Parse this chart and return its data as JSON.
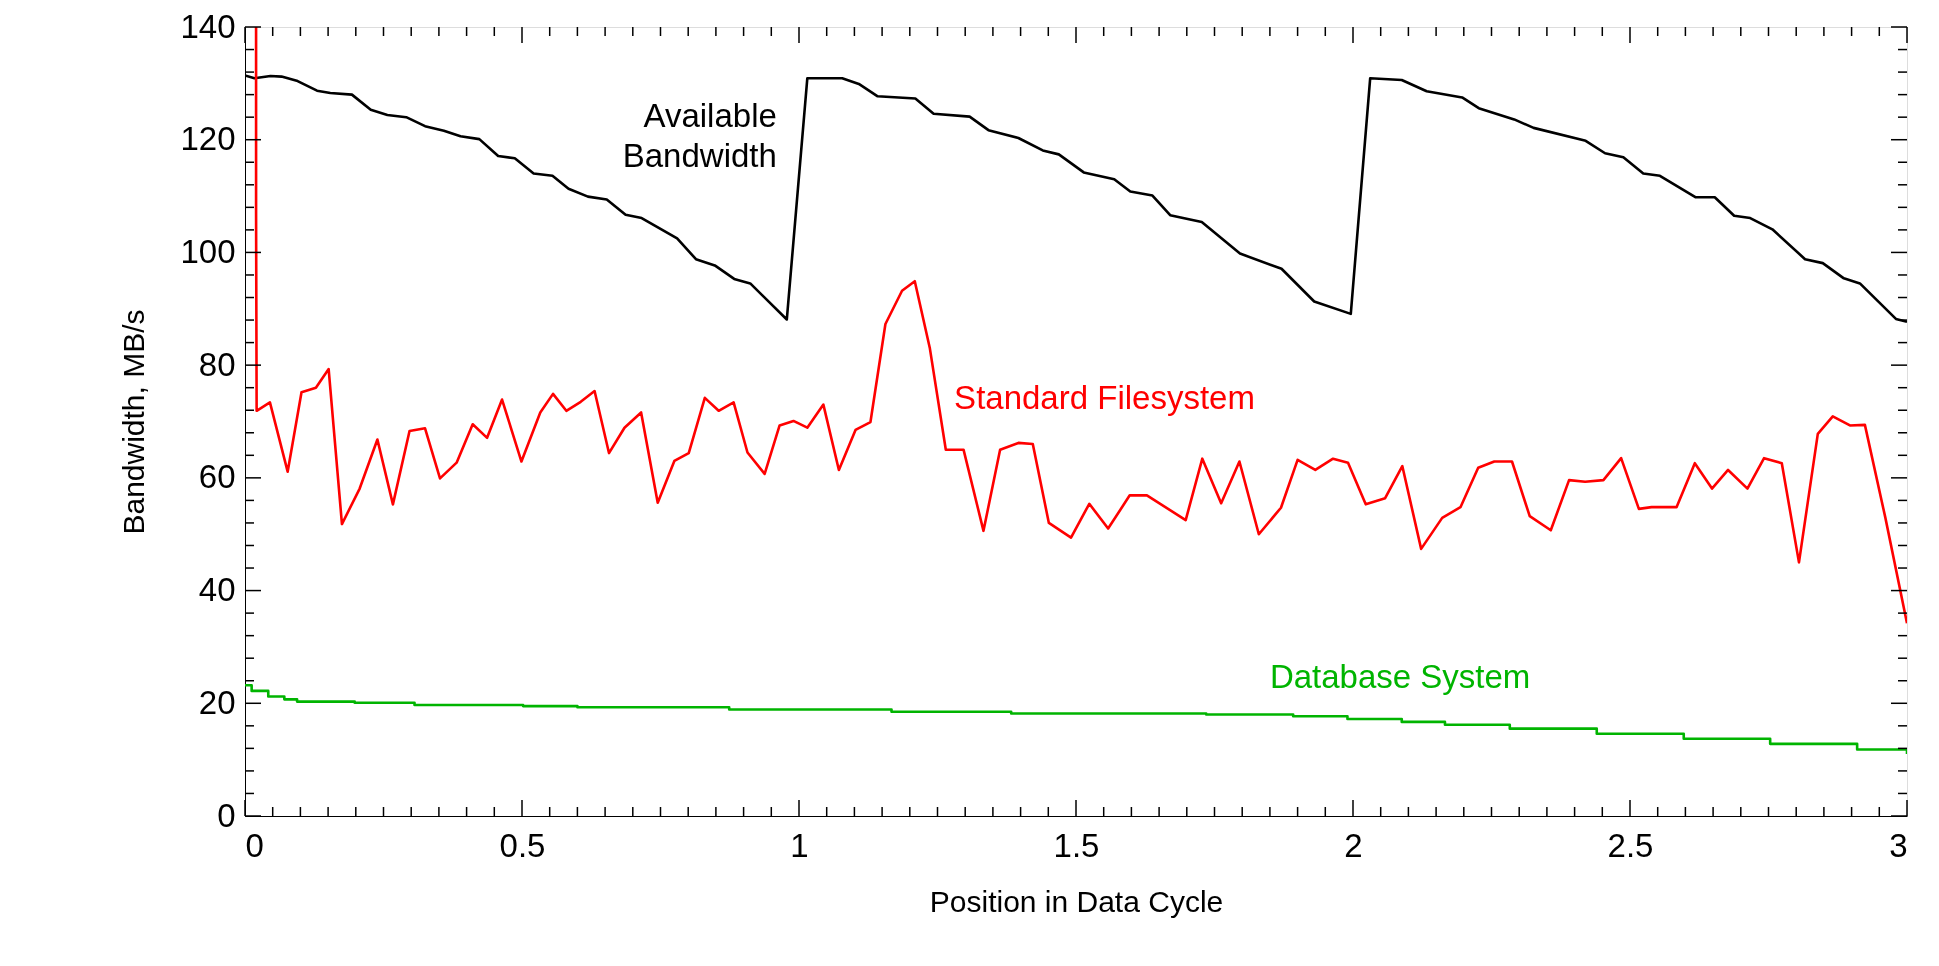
{
  "chart_data": {
    "type": "line",
    "xlabel": "Position in Data Cycle",
    "ylabel": "Bandwidth, MB/s",
    "xlim": [
      0,
      3
    ],
    "ylim": [
      0,
      140
    ],
    "xticks": [
      0,
      {
        "value": 0.05,
        "label": null
      },
      {
        "value": 0.1,
        "label": null
      },
      {
        "value": 0.15,
        "label": null
      },
      {
        "value": 0.2,
        "label": null
      },
      {
        "value": 0.25,
        "label": null
      },
      {
        "value": 0.3,
        "label": null
      },
      {
        "value": 0.35,
        "label": null
      },
      {
        "value": 0.4,
        "label": null
      },
      {
        "value": 0.45,
        "label": null
      },
      0.5,
      {
        "value": 0.55,
        "label": null
      },
      {
        "value": 0.6,
        "label": null
      },
      {
        "value": 0.65,
        "label": null
      },
      {
        "value": 0.7,
        "label": null
      },
      {
        "value": 0.75,
        "label": null
      },
      {
        "value": 0.8,
        "label": null
      },
      {
        "value": 0.85,
        "label": null
      },
      {
        "value": 0.9,
        "label": null
      },
      {
        "value": 0.95,
        "label": null
      },
      1,
      {
        "value": 1.05,
        "label": null
      },
      {
        "value": 1.1,
        "label": null
      },
      {
        "value": 1.15,
        "label": null
      },
      {
        "value": 1.2,
        "label": null
      },
      {
        "value": 1.25,
        "label": null
      },
      {
        "value": 1.3,
        "label": null
      },
      {
        "value": 1.35,
        "label": null
      },
      {
        "value": 1.4,
        "label": null
      },
      {
        "value": 1.45,
        "label": null
      },
      1.5,
      {
        "value": 1.55,
        "label": null
      },
      {
        "value": 1.6,
        "label": null
      },
      {
        "value": 1.65,
        "label": null
      },
      {
        "value": 1.7,
        "label": null
      },
      {
        "value": 1.75,
        "label": null
      },
      {
        "value": 1.8,
        "label": null
      },
      {
        "value": 1.85,
        "label": null
      },
      {
        "value": 1.9,
        "label": null
      },
      {
        "value": 1.95,
        "label": null
      },
      2,
      {
        "value": 2.05,
        "label": null
      },
      {
        "value": 2.1,
        "label": null
      },
      {
        "value": 2.15,
        "label": null
      },
      {
        "value": 2.2,
        "label": null
      },
      {
        "value": 2.25,
        "label": null
      },
      {
        "value": 2.3,
        "label": null
      },
      {
        "value": 2.35,
        "label": null
      },
      {
        "value": 2.4,
        "label": null
      },
      {
        "value": 2.45,
        "label": null
      },
      2.5,
      {
        "value": 2.55,
        "label": null
      },
      {
        "value": 2.6,
        "label": null
      },
      {
        "value": 2.65,
        "label": null
      },
      {
        "value": 2.7,
        "label": null
      },
      {
        "value": 2.75,
        "label": null
      },
      {
        "value": 2.8,
        "label": null
      },
      {
        "value": 2.85,
        "label": null
      },
      {
        "value": 2.9,
        "label": null
      },
      {
        "value": 2.95,
        "label": null
      },
      3
    ],
    "yticks": [
      0,
      {
        "value": 4,
        "label": null
      },
      {
        "value": 8,
        "label": null
      },
      {
        "value": 12,
        "label": null
      },
      {
        "value": 16,
        "label": null
      },
      20,
      {
        "value": 24,
        "label": null
      },
      {
        "value": 28,
        "label": null
      },
      {
        "value": 32,
        "label": null
      },
      {
        "value": 36,
        "label": null
      },
      40,
      {
        "value": 44,
        "label": null
      },
      {
        "value": 48,
        "label": null
      },
      {
        "value": 52,
        "label": null
      },
      {
        "value": 56,
        "label": null
      },
      60,
      {
        "value": 64,
        "label": null
      },
      {
        "value": 68,
        "label": null
      },
      {
        "value": 72,
        "label": null
      },
      {
        "value": 76,
        "label": null
      },
      80,
      {
        "value": 84,
        "label": null
      },
      {
        "value": 88,
        "label": null
      },
      {
        "value": 92,
        "label": null
      },
      {
        "value": 96,
        "label": null
      },
      100,
      {
        "value": 104,
        "label": null
      },
      {
        "value": 108,
        "label": null
      },
      {
        "value": 112,
        "label": null
      },
      {
        "value": 116,
        "label": null
      },
      120,
      {
        "value": 124,
        "label": null
      },
      {
        "value": 128,
        "label": null
      },
      {
        "value": 132,
        "label": null
      },
      {
        "value": 136,
        "label": null
      },
      140
    ],
    "grid": false,
    "marker": "none",
    "line_style": "solid",
    "series": [
      {
        "name": "Available\nBandwidth",
        "color": "#000000",
        "type": "line",
        "x": [
          0,
          0.017,
          0.046,
          0.066,
          0.095,
          0.13,
          0.154,
          0.193,
          0.227,
          0.257,
          0.291,
          0.325,
          0.359,
          0.389,
          0.423,
          0.457,
          0.487,
          0.521,
          0.555,
          0.584,
          0.619,
          0.653,
          0.687,
          0.716,
          0.78,
          0.814,
          0.848,
          0.883,
          0.912,
          0.978,
          1.015,
          1.078,
          1.108,
          1.142,
          1.21,
          1.243,
          1.308,
          1.342,
          1.396,
          1.44,
          1.469,
          1.514,
          1.569,
          1.598,
          1.638,
          1.67,
          1.727,
          1.796,
          1.871,
          1.93,
          1.996,
          2.031,
          2.088,
          2.133,
          2.197,
          2.227,
          2.291,
          2.326,
          2.42,
          2.455,
          2.488,
          2.524,
          2.554,
          2.618,
          2.653,
          2.688,
          2.717,
          2.757,
          2.816,
          2.848,
          2.886,
          2.915,
          2.98,
          3
        ],
        "values": [
          131.4,
          130.9,
          131.3,
          131.2,
          130.4,
          128.7,
          128.3,
          128.0,
          125.3,
          124.4,
          124.0,
          122.4,
          121.6,
          120.6,
          120.1,
          117.1,
          116.7,
          114.0,
          113.6,
          111.3,
          109.9,
          109.4,
          106.7,
          106.1,
          102.5,
          98.8,
          97.7,
          95.3,
          94.5,
          88.1,
          130.9,
          130.9,
          129.9,
          127.7,
          127.3,
          124.6,
          124.1,
          121.7,
          120.3,
          118.1,
          117.4,
          114.2,
          113.0,
          110.8,
          110.1,
          106.6,
          105.4,
          99.8,
          97.1,
          91.3,
          89.1,
          130.9,
          130.6,
          128.6,
          127.5,
          125.6,
          123.6,
          122.1,
          119.8,
          117.6,
          116.9,
          114.0,
          113.6,
          109.8,
          109.8,
          106.5,
          106.1,
          104.1,
          98.8,
          98.1,
          95.4,
          94.5,
          88.2,
          87.7
        ]
      },
      {
        "name": "Standard Filesystem",
        "color": "#ff0000",
        "type": "line",
        "x": [
          0.02,
          0.02,
          0.021,
          0.045,
          0.077,
          0.102,
          0.128,
          0.151,
          0.175,
          0.207,
          0.239,
          0.267,
          0.297,
          0.325,
          0.352,
          0.382,
          0.411,
          0.437,
          0.464,
          0.499,
          0.533,
          0.556,
          0.58,
          0.606,
          0.631,
          0.657,
          0.685,
          0.715,
          0.745,
          0.775,
          0.801,
          0.83,
          0.855,
          0.882,
          0.907,
          0.938,
          0.965,
          0.99,
          1.015,
          1.044,
          1.072,
          1.102,
          1.129,
          1.156,
          1.186,
          1.209,
          1.236,
          1.265,
          1.297,
          1.333,
          1.363,
          1.396,
          1.422,
          1.451,
          1.491,
          1.524,
          1.558,
          1.597,
          1.628,
          1.698,
          1.728,
          1.762,
          1.795,
          1.83,
          1.87,
          1.9,
          1.932,
          1.964,
          1.991,
          2.023,
          2.058,
          2.089,
          2.123,
          2.161,
          2.194,
          2.226,
          2.255,
          2.287,
          2.319,
          2.357,
          2.39,
          2.419,
          2.452,
          2.484,
          2.516,
          2.539,
          2.584,
          2.617,
          2.648,
          2.677,
          2.712,
          2.742,
          2.774,
          2.805,
          2.839,
          2.866,
          2.897,
          2.924,
          2.961,
          3
        ],
        "values": [
          140,
          107,
          71.9,
          73.4,
          61.1,
          75.2,
          76.0,
          79.3,
          51.8,
          58.1,
          66.8,
          55.3,
          68.3,
          68.8,
          59.9,
          62.7,
          69.5,
          67.1,
          73.9,
          62.9,
          71.6,
          74.9,
          71.9,
          73.5,
          75.4,
          64.4,
          68.9,
          71.6,
          55.6,
          63.0,
          64.4,
          74.2,
          71.9,
          73.4,
          64.5,
          60.7,
          69.3,
          70.1,
          68.9,
          73.0,
          61.4,
          68.5,
          69.9,
          87.3,
          93.2,
          94.9,
          83.1,
          65.0,
          65.0,
          50.6,
          65.0,
          66.2,
          66.0,
          52.0,
          49.4,
          55.4,
          51.0,
          56.9,
          56.9,
          52.5,
          63.4,
          55.5,
          62.9,
          50.0,
          54.7,
          63.2,
          61.4,
          63.4,
          62.7,
          55.3,
          56.4,
          62.1,
          47.4,
          52.9,
          54.8,
          61.8,
          62.9,
          62.9,
          53.2,
          50.7,
          59.6,
          59.3,
          59.6,
          63.5,
          54.5,
          54.8,
          54.8,
          62.6,
          58.1,
          61.4,
          58.1,
          63.5,
          62.6,
          45.0,
          67.8,
          70.9,
          69.3,
          69.4,
          52.9,
          34.2
        ]
      },
      {
        "name": "Database System",
        "color": "#00b400",
        "type": "step",
        "x": [
          0,
          0.012,
          0.042,
          0.071,
          0.094,
          0.198,
          0.306,
          0.502,
          0.6,
          0.874,
          1.167,
          1.383,
          1.735,
          1.892,
          1.99,
          2.088,
          2.166,
          2.283,
          2.44,
          2.597,
          2.753,
          2.91,
          3
        ],
        "values": [
          23.2,
          22.2,
          21.2,
          20.7,
          20.3,
          20.1,
          19.7,
          19.5,
          19.3,
          18.9,
          18.5,
          18.2,
          18.0,
          17.7,
          17.2,
          16.7,
          16.2,
          15.5,
          14.6,
          13.7,
          12.8,
          11.8,
          11.0
        ]
      }
    ]
  }
}
